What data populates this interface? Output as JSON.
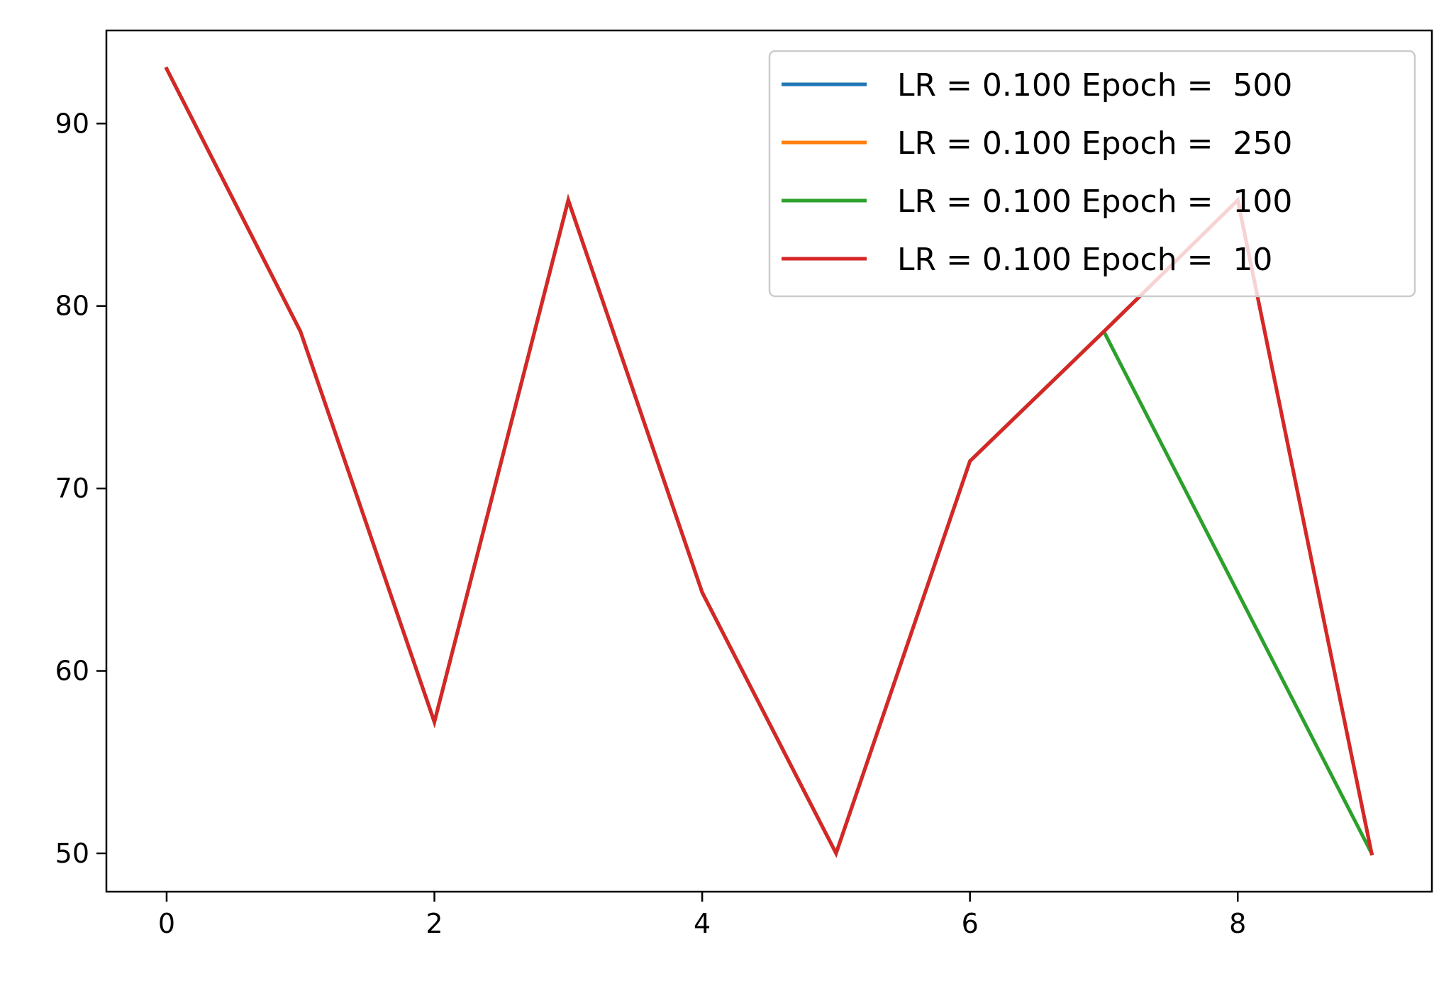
{
  "chart_data": {
    "type": "line",
    "title": "",
    "xlabel": "",
    "ylabel": "",
    "xlim": [
      -0.45,
      9.45
    ],
    "ylim": [
      47.9,
      95.1
    ],
    "xticks": [
      0,
      2,
      4,
      6,
      8
    ],
    "yticks": [
      50,
      60,
      70,
      80,
      90
    ],
    "grid": false,
    "legend_position": "top-right",
    "x": [
      0,
      1,
      2,
      3,
      4,
      5,
      6,
      7,
      8,
      9
    ],
    "series": [
      {
        "name": "LR = 0.100 Epoch =  500",
        "color": "#1f77b4",
        "values": [
          93.0,
          78.6,
          57.2,
          85.8,
          64.3,
          50.0,
          71.5,
          78.6,
          85.8,
          50.0
        ]
      },
      {
        "name": "LR = 0.100 Epoch =  250",
        "color": "#ff7f0e",
        "values": [
          93.0,
          78.6,
          57.2,
          85.8,
          64.3,
          50.0,
          71.5,
          78.6,
          85.8,
          50.0
        ]
      },
      {
        "name": "LR = 0.100 Epoch =  100",
        "color": "#2ca02c",
        "values": [
          93.0,
          78.6,
          57.2,
          85.8,
          64.3,
          50.0,
          71.5,
          78.6,
          64.3,
          50.0
        ]
      },
      {
        "name": "LR = 0.100 Epoch =  10",
        "color": "#d62728",
        "values": [
          93.0,
          78.6,
          57.2,
          85.8,
          64.3,
          50.0,
          71.5,
          78.6,
          85.8,
          50.0
        ]
      }
    ]
  }
}
